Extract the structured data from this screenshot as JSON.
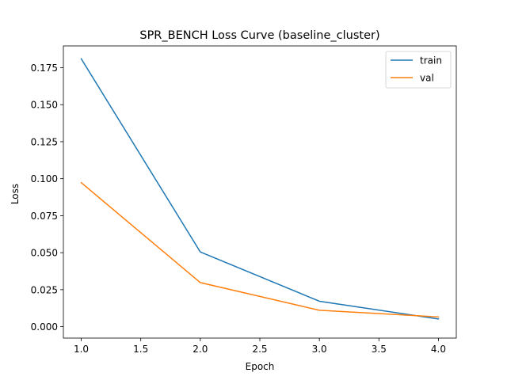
{
  "chart_data": {
    "type": "line",
    "title": "SPR_BENCH Loss Curve (baseline_cluster)",
    "xlabel": "Epoch",
    "ylabel": "Loss",
    "x": [
      1.0,
      2.0,
      3.0,
      4.0
    ],
    "series": [
      {
        "name": "train",
        "color": "#1f77b4",
        "values": [
          0.181,
          0.0505,
          0.0172,
          0.0052
        ]
      },
      {
        "name": "val",
        "color": "#ff7f0e",
        "values": [
          0.0973,
          0.0298,
          0.0111,
          0.0066
        ]
      }
    ],
    "xlim": [
      0.85,
      4.15
    ],
    "ylim": [
      -0.0077,
      0.1897
    ],
    "xticks": [
      1.0,
      1.5,
      2.0,
      2.5,
      3.0,
      3.5,
      4.0
    ],
    "xtick_labels": [
      "1.0",
      "1.5",
      "2.0",
      "2.5",
      "3.0",
      "3.5",
      "4.0"
    ],
    "yticks": [
      0.0,
      0.025,
      0.05,
      0.075,
      0.1,
      0.125,
      0.15,
      0.175
    ],
    "ytick_labels": [
      "0.000",
      "0.025",
      "0.050",
      "0.075",
      "0.100",
      "0.125",
      "0.150",
      "0.175"
    ],
    "grid": false,
    "legend_position": "top-right"
  }
}
